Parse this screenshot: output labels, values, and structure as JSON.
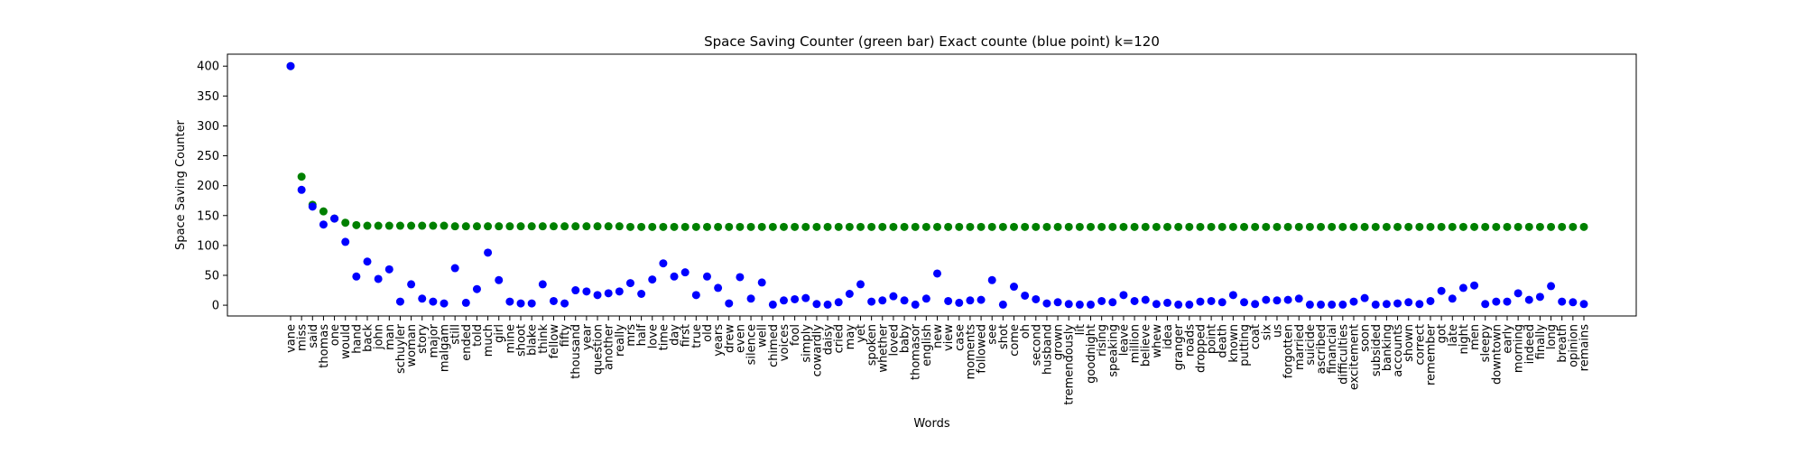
{
  "chart_data": {
    "type": "scatter",
    "title": "Space Saving Counter (green bar)  Exact counte (blue point) k=120",
    "xlabel": "Words",
    "ylabel": "Space Saving Counter",
    "ylim": [
      -18,
      420
    ],
    "yticks": [
      0,
      50,
      100,
      150,
      200,
      250,
      300,
      350,
      400
    ],
    "grid": false,
    "legend": "none",
    "categories": [
      "vane",
      "miss",
      "said",
      "thomas",
      "one",
      "would",
      "hand",
      "back",
      "john",
      "man",
      "schuyler",
      "woman",
      "story",
      "major",
      "malgam",
      "still",
      "ended",
      "told",
      "much",
      "girl",
      "mine",
      "shoot",
      "blake",
      "think",
      "fellow",
      "fifty",
      "thousand",
      "year",
      "question",
      "another",
      "really",
      "mrs",
      "half",
      "love",
      "time",
      "day",
      "first",
      "true",
      "old",
      "years",
      "drew",
      "even",
      "silence",
      "well",
      "chimed",
      "voices",
      "fool",
      "simply",
      "cowardly",
      "daisy",
      "cried",
      "may",
      "yet",
      "spoken",
      "whether",
      "loved",
      "baby",
      "thomasor",
      "english",
      "new",
      "view",
      "case",
      "moments",
      "followed",
      "see",
      "shot",
      "come",
      "oh",
      "second",
      "husband",
      "grown",
      "tremendously",
      "lit",
      "goodnight",
      "rising",
      "speaking",
      "leave",
      "million",
      "believe",
      "whew",
      "idea",
      "granger",
      "roads",
      "dropped",
      "point",
      "death",
      "known",
      "putting",
      "coat",
      "six",
      "us",
      "forgotten",
      "married",
      "suicide",
      "ascribed",
      "financial",
      "difficulties",
      "excitement",
      "soon",
      "subsided",
      "banking",
      "accounts",
      "shown",
      "correct",
      "remember",
      "got",
      "late",
      "night",
      "men",
      "sleepy",
      "downtown",
      "early",
      "morning",
      "indeed",
      "finally",
      "long",
      "breath",
      "opinion",
      "remains"
    ],
    "series": [
      {
        "color": "#008000",
        "values": [
          400,
          215,
          168,
          157,
          145,
          138,
          134,
          133,
          133,
          133,
          133,
          133,
          133,
          133,
          133,
          132,
          132,
          132,
          132,
          132,
          132,
          132,
          132,
          132,
          132,
          132,
          132,
          132,
          132,
          132,
          132,
          131,
          131,
          131,
          131,
          131,
          131,
          131,
          131,
          131,
          131,
          131,
          131,
          131,
          131,
          131,
          131,
          131,
          131,
          131,
          131,
          131,
          131,
          131,
          131,
          131,
          131,
          131,
          131,
          131,
          131,
          131,
          131,
          131,
          131,
          131,
          131,
          131,
          131,
          131,
          131,
          131,
          131,
          131,
          131,
          131,
          131,
          131,
          131,
          131,
          131,
          131,
          131,
          131,
          131,
          131,
          131,
          131,
          131,
          131,
          131,
          131,
          131,
          131,
          131,
          131,
          131,
          131,
          131,
          131,
          131,
          131,
          131,
          131,
          131,
          131,
          131,
          131,
          131,
          131,
          131,
          131,
          131,
          131,
          131,
          131,
          131,
          131,
          131
        ]
      },
      {
        "color": "#0000ff",
        "values": [
          400,
          193,
          165,
          135,
          145,
          106,
          48,
          73,
          44,
          60,
          6,
          35,
          11,
          6,
          3,
          62,
          4,
          27,
          88,
          42,
          6,
          3,
          3,
          35,
          7,
          3,
          25,
          23,
          17,
          20,
          23,
          37,
          19,
          43,
          70,
          48,
          55,
          17,
          48,
          29,
          3,
          47,
          11,
          38,
          1,
          8,
          10,
          12,
          2,
          1,
          5,
          19,
          35,
          6,
          8,
          15,
          8,
          1,
          11,
          53,
          7,
          4,
          8,
          9,
          42,
          1,
          31,
          16,
          10,
          3,
          5,
          2,
          1,
          1,
          7,
          5,
          17,
          7,
          9,
          2,
          4,
          1,
          1,
          6,
          7,
          5,
          17,
          5,
          2,
          9,
          8,
          9,
          11,
          1,
          1,
          1,
          1,
          6,
          12,
          1,
          2,
          3,
          5,
          2,
          7,
          24,
          11,
          29,
          33,
          2,
          6,
          6,
          20,
          9,
          14,
          32,
          6,
          5,
          2
        ]
      }
    ]
  }
}
